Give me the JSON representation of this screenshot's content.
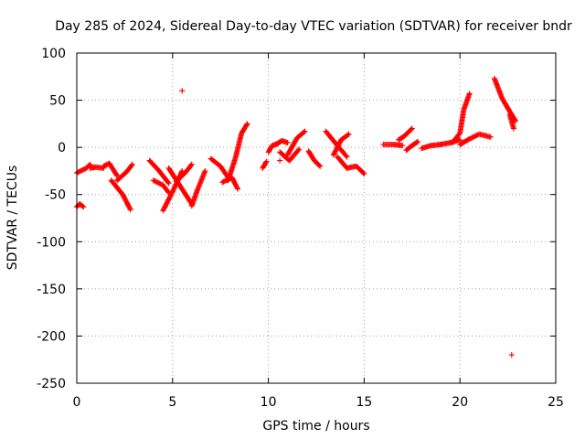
{
  "chart_data": {
    "type": "scatter",
    "title": "Day 285 of 2024, Sidereal Day-to-day VTEC variation (SDTVAR) for receiver bndr",
    "xlabel": "GPS time / hours",
    "ylabel": "SDTVAR / TECUs",
    "xlim": [
      0,
      25
    ],
    "ylim": [
      -250,
      100
    ],
    "xticks": [
      0,
      5,
      10,
      15,
      20,
      25
    ],
    "yticks": [
      -250,
      -200,
      -150,
      -100,
      -50,
      0,
      50,
      100
    ],
    "grid": true,
    "marker": "plus",
    "color": "#ff0000",
    "segments": [
      {
        "x": [
          0.0,
          0.5,
          0.7
        ],
        "y": [
          -27,
          -22,
          -18
        ]
      },
      {
        "x": [
          0.0,
          0.15,
          0.35
        ],
        "y": [
          -63,
          -60,
          -63
        ]
      },
      {
        "x": [
          0.7,
          1.0,
          1.4
        ],
        "y": [
          -22,
          -21,
          -22
        ]
      },
      {
        "x": [
          1.4,
          1.7,
          2.1
        ],
        "y": [
          -20,
          -17,
          -30
        ]
      },
      {
        "x": [
          1.8,
          2.4,
          2.8
        ],
        "y": [
          -35,
          -50,
          -66
        ]
      },
      {
        "x": [
          2.1,
          2.6,
          2.9
        ],
        "y": [
          -35,
          -26,
          -18
        ]
      },
      {
        "x": [
          3.8,
          4.3,
          4.8
        ],
        "y": [
          -14,
          -25,
          -38
        ]
      },
      {
        "x": [
          4.0,
          4.5,
          4.8
        ],
        "y": [
          -35,
          -40,
          -48
        ]
      },
      {
        "x": [
          4.5,
          5.0,
          5.5
        ],
        "y": [
          -67,
          -47,
          -25
        ]
      },
      {
        "x": [
          4.8,
          5.3,
          6.0
        ],
        "y": [
          -22,
          -38,
          -60
        ]
      },
      {
        "x": [
          5.2,
          5.7,
          6.0
        ],
        "y": [
          -36,
          -26,
          -18
        ]
      },
      {
        "x": [
          6.0,
          6.3,
          6.7
        ],
        "y": [
          -62,
          -45,
          -25
        ]
      },
      {
        "x": [
          7.0,
          7.5,
          7.9
        ],
        "y": [
          -12,
          -20,
          -32
        ]
      },
      {
        "x": [
          7.6,
          8.1,
          8.4
        ],
        "y": [
          -37,
          -32,
          -44
        ]
      },
      {
        "x": [
          7.9,
          8.3,
          8.6,
          8.9
        ],
        "y": [
          -35,
          -10,
          15,
          25
        ]
      },
      {
        "x": [
          9.7,
          9.9
        ],
        "y": [
          -22,
          -15
        ]
      },
      {
        "x": [
          10.0,
          10.2,
          10.5
        ],
        "y": [
          -5,
          2,
          4
        ]
      },
      {
        "x": [
          10.4,
          10.7,
          11.0
        ],
        "y": [
          3,
          7,
          5
        ]
      },
      {
        "x": [
          10.6,
          11.1,
          11.6
        ],
        "y": [
          -5,
          -14,
          -2
        ]
      },
      {
        "x": [
          11.0,
          11.5,
          11.9
        ],
        "y": [
          -8,
          10,
          17
        ]
      },
      {
        "x": [
          12.1,
          12.4,
          12.7
        ],
        "y": [
          -4,
          -14,
          -20
        ]
      },
      {
        "x": [
          13.0,
          13.6,
          14.1
        ],
        "y": [
          17,
          2,
          -10
        ]
      },
      {
        "x": [
          13.4,
          13.8,
          14.2
        ],
        "y": [
          -8,
          8,
          14
        ]
      },
      {
        "x": [
          13.6,
          14.1,
          14.6,
          15.0
        ],
        "y": [
          -10,
          -22,
          -20,
          -28
        ]
      },
      {
        "x": [
          16.0,
          16.5,
          17.0
        ],
        "y": [
          3,
          3,
          2
        ]
      },
      {
        "x": [
          16.8,
          17.1,
          17.5
        ],
        "y": [
          8,
          12,
          20
        ]
      },
      {
        "x": [
          17.2,
          17.5,
          17.8
        ],
        "y": [
          -3,
          2,
          6
        ]
      },
      {
        "x": [
          18.0,
          18.5,
          19.0
        ],
        "y": [
          -1,
          2,
          3
        ]
      },
      {
        "x": [
          19.0,
          19.5,
          20.0
        ],
        "y": [
          3,
          5,
          8
        ]
      },
      {
        "x": [
          19.6,
          20.0,
          20.2,
          20.5
        ],
        "y": [
          5,
          15,
          40,
          57
        ]
      },
      {
        "x": [
          20.0,
          20.5,
          21.0,
          21.6
        ],
        "y": [
          3,
          9,
          14,
          11
        ]
      },
      {
        "x": [
          21.8,
          22.2,
          22.6,
          22.9
        ],
        "y": [
          73,
          52,
          38,
          28
        ]
      },
      {
        "x": [
          22.6,
          22.8
        ],
        "y": [
          35,
          20
        ]
      }
    ],
    "points": [
      {
        "x": 5.5,
        "y": 60
      },
      {
        "x": 10.6,
        "y": -14
      },
      {
        "x": 22.7,
        "y": -220
      }
    ]
  }
}
